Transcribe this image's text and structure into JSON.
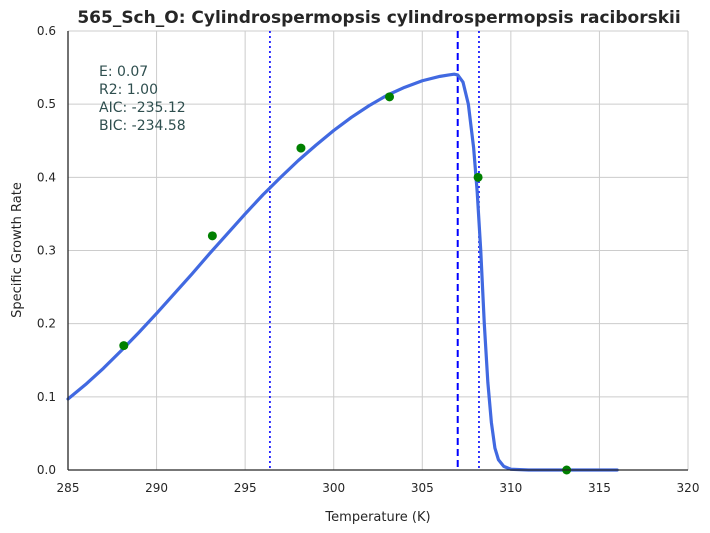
{
  "chart_data": {
    "type": "line",
    "title": "565_Sch_O: Cylindrospermopsis cylindrospermopsis raciborskii",
    "xlabel": "Temperature (K)",
    "ylabel": "Specific Growth Rate",
    "xlim": [
      285,
      320
    ],
    "ylim": [
      0.0,
      0.6
    ],
    "x_ticks": [
      "285",
      "290",
      "295",
      "300",
      "305",
      "310",
      "315",
      "320"
    ],
    "y_ticks": [
      "0.0",
      "0.1",
      "0.2",
      "0.3",
      "0.4",
      "0.5",
      "0.6"
    ],
    "grid": true,
    "observed_points": [
      {
        "x": 288.15,
        "y": 0.17
      },
      {
        "x": 293.15,
        "y": 0.32
      },
      {
        "x": 298.15,
        "y": 0.44
      },
      {
        "x": 303.15,
        "y": 0.51
      },
      {
        "x": 308.15,
        "y": 0.4
      },
      {
        "x": 313.15,
        "y": 0.0
      }
    ],
    "fit_curve": {
      "x": [
        285.0,
        286.0,
        287.0,
        288.0,
        289.0,
        290.0,
        291.0,
        292.0,
        293.0,
        294.0,
        295.0,
        296.0,
        297.0,
        298.0,
        299.0,
        300.0,
        301.0,
        302.0,
        303.0,
        304.0,
        305.0,
        306.0,
        306.5,
        306.8,
        307.0,
        307.3,
        307.6,
        307.9,
        308.1,
        308.3,
        308.5,
        308.7,
        308.9,
        309.1,
        309.3,
        309.6,
        310.0,
        311.0,
        312.0,
        313.0,
        314.0,
        315.0,
        316.0
      ],
      "y": [
        0.097,
        0.117,
        0.139,
        0.163,
        0.188,
        0.214,
        0.241,
        0.268,
        0.296,
        0.323,
        0.35,
        0.376,
        0.4,
        0.423,
        0.444,
        0.464,
        0.482,
        0.498,
        0.512,
        0.523,
        0.532,
        0.538,
        0.54,
        0.541,
        0.54,
        0.53,
        0.5,
        0.44,
        0.38,
        0.3,
        0.2,
        0.12,
        0.065,
        0.03,
        0.014,
        0.005,
        0.001,
        0.0,
        0.0,
        0.0,
        0.0,
        0.0,
        0.0
      ]
    },
    "vlines": [
      {
        "x": 296.4,
        "style": "dotted"
      },
      {
        "x": 307.0,
        "style": "dashed"
      },
      {
        "x": 308.2,
        "style": "dotted"
      }
    ],
    "annotations": [
      "E:  0.07",
      "R2:  1.00",
      "AIC: -235.12",
      "BIC: -234.58"
    ],
    "colors": {
      "curve": "#4169e1",
      "points": "#008000",
      "vlines": "#0000ff",
      "grid": "#cccccc",
      "axis": "#262626",
      "annotation": "#2f4f4f"
    }
  }
}
